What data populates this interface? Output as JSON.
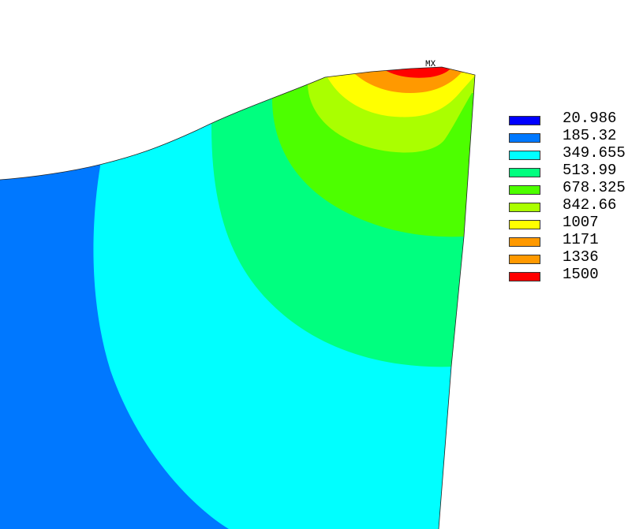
{
  "plot": {
    "max_marker_label": "MX"
  },
  "legend": {
    "items": [
      {
        "value": "20.986",
        "color": "#0000ff"
      },
      {
        "value": "185.32",
        "color": "#0078ff"
      },
      {
        "value": "349.655",
        "color": "#00ffff"
      },
      {
        "value": "513.99",
        "color": "#00ff7f"
      },
      {
        "value": "678.325",
        "color": "#4dff00"
      },
      {
        "value": "842.66",
        "color": "#aaff00"
      },
      {
        "value": "1007",
        "color": "#ffff00"
      },
      {
        "value": "1171",
        "color": "#ff9900"
      },
      {
        "value": "1336",
        "color": "#ff9900"
      },
      {
        "value": "1500",
        "color": "#ff0000"
      }
    ]
  }
}
